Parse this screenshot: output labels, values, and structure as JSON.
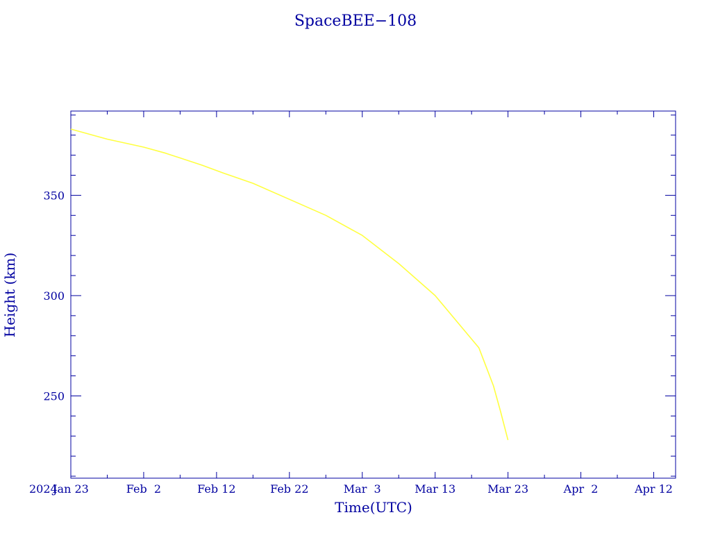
{
  "chart_data": {
    "type": "line",
    "title": "SpaceBEE−108",
    "xlabel": "Time(UTC)",
    "ylabel": "Height (km)",
    "year_label": "2024",
    "xlim": [
      "2024-01-23",
      "2024-04-15"
    ],
    "ylim": [
      209,
      392
    ],
    "x_ticks": [
      {
        "date": "2024-01-23",
        "label": "Jan 23"
      },
      {
        "date": "2024-02-02",
        "label": "Feb  2"
      },
      {
        "date": "2024-02-12",
        "label": "Feb 12"
      },
      {
        "date": "2024-02-22",
        "label": "Feb 22"
      },
      {
        "date": "2024-03-03",
        "label": "Mar  3"
      },
      {
        "date": "2024-03-13",
        "label": "Mar 13"
      },
      {
        "date": "2024-03-23",
        "label": "Mar 23"
      },
      {
        "date": "2024-04-02",
        "label": "Apr  2"
      },
      {
        "date": "2024-04-12",
        "label": "Apr 12"
      }
    ],
    "y_ticks": [
      250,
      300,
      350
    ],
    "grid": false,
    "colors": {
      "axes": "#0000a0",
      "line": "#ffff40",
      "background": "#ffffff"
    },
    "series": [
      {
        "x": [
          "2024-01-23",
          "2024-01-28",
          "2024-02-02",
          "2024-02-05",
          "2024-02-10",
          "2024-02-13",
          "2024-02-17",
          "2024-02-22",
          "2024-02-27",
          "2024-03-03",
          "2024-03-08",
          "2024-03-13",
          "2024-03-16",
          "2024-03-19",
          "2024-03-21",
          "2024-03-22",
          "2024-03-23"
        ],
        "y": [
          383,
          378,
          374,
          371,
          365,
          361,
          356,
          348,
          340,
          330,
          316,
          300,
          287,
          274,
          255,
          242,
          228
        ]
      }
    ]
  }
}
